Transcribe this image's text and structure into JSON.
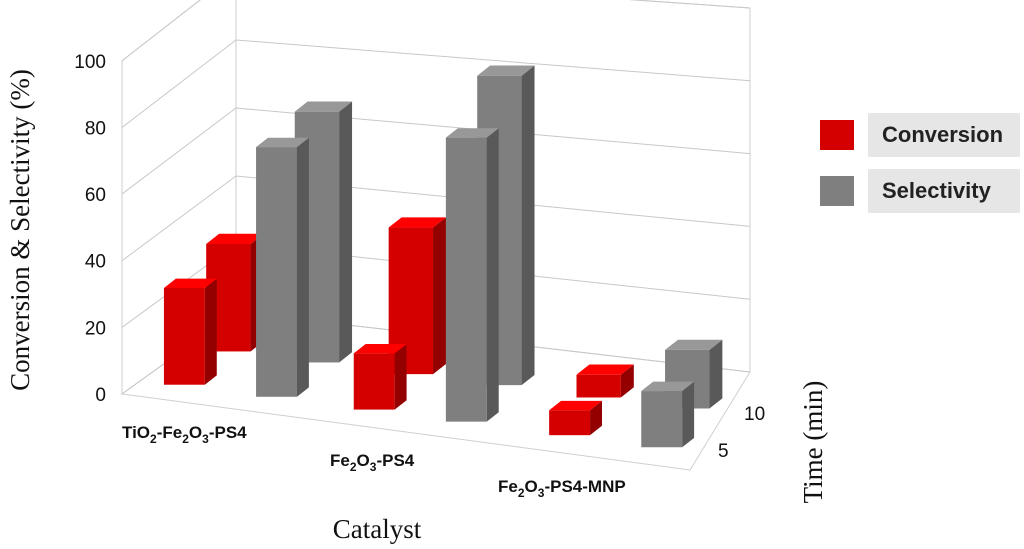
{
  "chart_data": {
    "type": "bar",
    "projection": "3d-clustered",
    "xlabel": "Catalyst",
    "ylabel": "Conversion & Selectivity (%)",
    "zlabel": "Time (min)",
    "categories": [
      {
        "base": "TiO",
        "sub1": "2",
        "mid": "-Fe",
        "sub2": "2",
        "mid2": "O",
        "sub3": "3",
        "tail": "-PS4"
      },
      {
        "base": "Fe",
        "sub1": "2",
        "mid": "O",
        "sub2": "3",
        "mid2": "-PS4",
        "sub3": "",
        "tail": ""
      },
      {
        "base": "Fe",
        "sub1": "2",
        "mid": "O",
        "sub2": "3",
        "mid2": "-PS4-MNP",
        "sub3": "",
        "tail": ""
      }
    ],
    "depth_labels": [
      "5",
      "10"
    ],
    "yticks": [
      "0",
      "20",
      "40",
      "60",
      "80",
      "100"
    ],
    "ylim": [
      0,
      100
    ],
    "series": [
      {
        "name": "Conversion",
        "color": "#d40000",
        "values": {
          "5": [
            31,
            18,
            8
          ],
          "10": [
            33,
            45,
            7
          ]
        }
      },
      {
        "name": "Selectivity",
        "color": "#7f7f7f",
        "values": {
          "5": [
            80,
            91,
            18
          ],
          "10": [
            77,
            95,
            18
          ]
        }
      }
    ],
    "grid": true,
    "legend_position": "right"
  },
  "legend": [
    {
      "label": "Conversion",
      "color": "#d40000"
    },
    {
      "label": "Selectivity",
      "color": "#7f7f7f"
    }
  ]
}
